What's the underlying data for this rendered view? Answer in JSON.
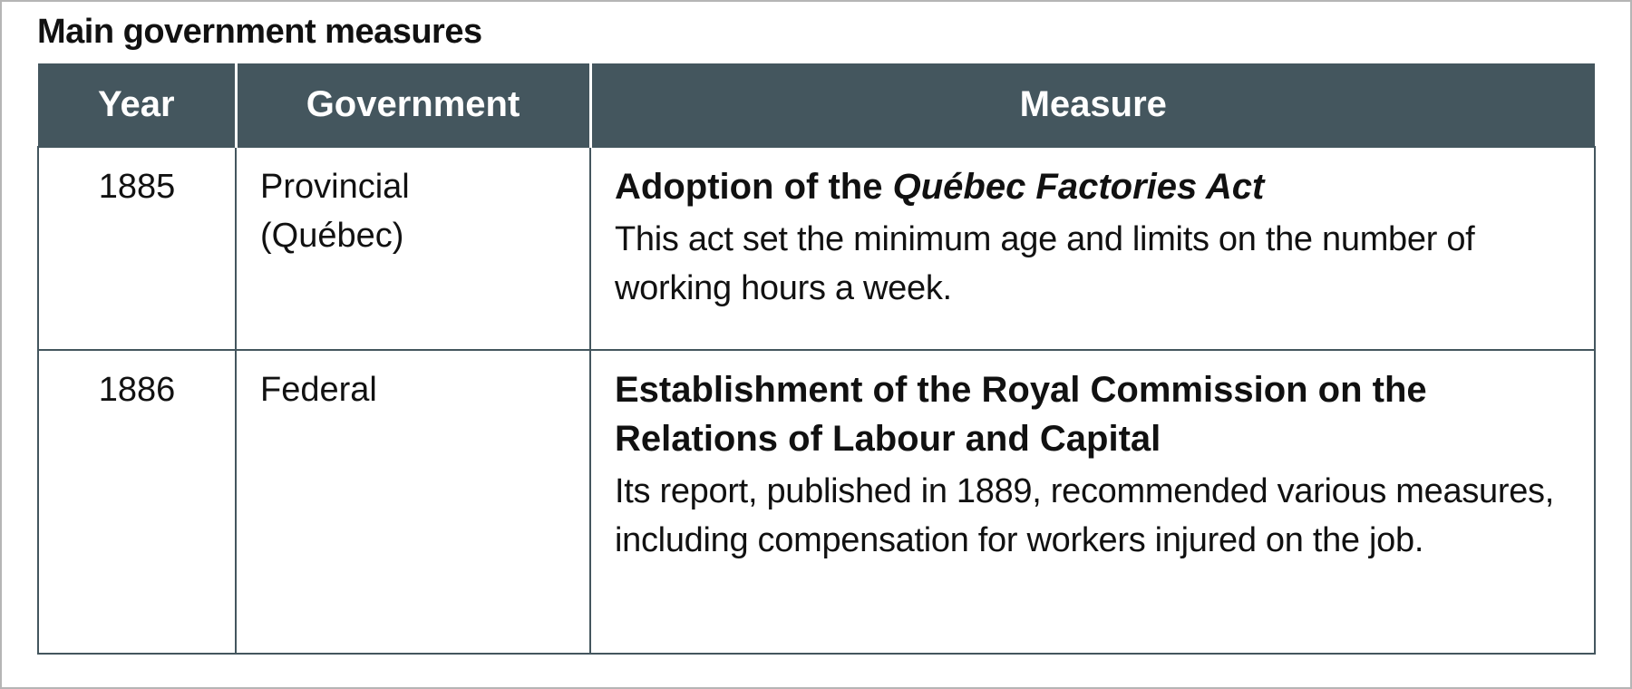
{
  "title": "Main government measures",
  "columns": [
    "Year",
    "Government",
    "Measure"
  ],
  "header_color": "#44565e",
  "rows": [
    {
      "year": "1885",
      "government": "Provincial (Québec)",
      "measure_title_prefix": "Adoption of the ",
      "measure_title_italic": "Québec Factories Act",
      "measure_title": "",
      "measure_text": "This act set the minimum age and limits on the number of working hours a week."
    },
    {
      "year": "1886",
      "government": "Federal",
      "measure_title_prefix": "",
      "measure_title_italic": "",
      "measure_title": "Establishment of the Royal Commission on the Relations of Labour and Capital",
      "measure_text": "Its report, published in 1889, recommended various measures, including compensation for workers injured on the job."
    }
  ]
}
